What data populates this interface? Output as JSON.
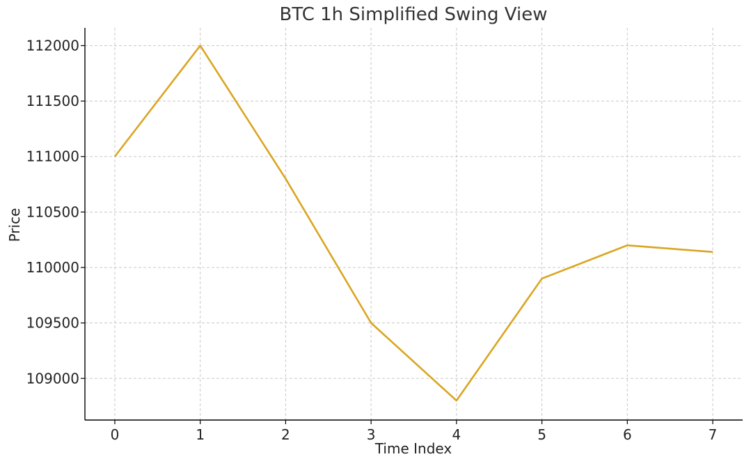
{
  "chart_data": {
    "type": "line",
    "title": "BTC 1h Simplified Swing View",
    "xlabel": "Time Index",
    "ylabel": "Price",
    "x": [
      0,
      1,
      2,
      3,
      4,
      5,
      6,
      7
    ],
    "series": [
      {
        "values": [
          111000,
          112000,
          110800,
          109500,
          108800,
          109900,
          110200,
          110140
        ],
        "color": "#DAA520"
      }
    ],
    "xticks": [
      0,
      1,
      2,
      3,
      4,
      5,
      6,
      7
    ],
    "yticks": [
      109000,
      109500,
      110000,
      110500,
      111000,
      111500,
      112000
    ],
    "xlim": [
      -0.35,
      7.35
    ],
    "ylim": [
      108625,
      112160
    ],
    "grid": true,
    "legend": "none"
  }
}
